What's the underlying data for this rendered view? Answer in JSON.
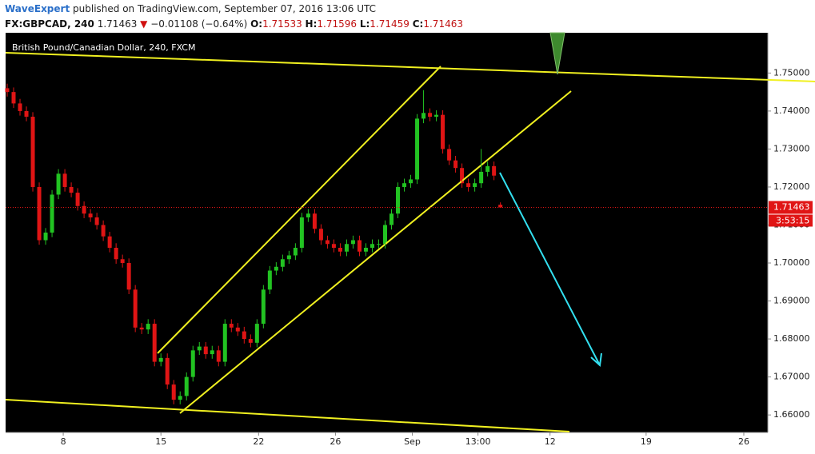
{
  "header": {
    "author": "WaveExpert",
    "published": "published on TradingView.com, September 07, 2016 13:06 UTC",
    "symbol": "FX:GBPCAD, 240",
    "change": "−0.01108 (−0.64%)",
    "labels": {
      "open": "O:",
      "high": "H:",
      "low": "L:",
      "close": "C:"
    }
  },
  "chart_data": {
    "type": "candlestick",
    "title": "British Pound/Canadian Dollar, 240, FXCM",
    "x": [
      0,
      2,
      4,
      6,
      8,
      10,
      12,
      14,
      16,
      18,
      20,
      22,
      24,
      26,
      28,
      30,
      32,
      34,
      36,
      38,
      40,
      42,
      44,
      46,
      48,
      50,
      52,
      54,
      56,
      58,
      60,
      62,
      64,
      66,
      68,
      70,
      72,
      74,
      76,
      78,
      80,
      82,
      84,
      86,
      88,
      90,
      92,
      94,
      96,
      98,
      100,
      102,
      104,
      106,
      108,
      110,
      112,
      114,
      116,
      118,
      120,
      122,
      124,
      126,
      128,
      130,
      132,
      134,
      136,
      138,
      140,
      142,
      144,
      146,
      148,
      150,
      152,
      154
    ],
    "open": [
      1.746,
      1.745,
      1.742,
      1.74,
      1.7385,
      1.72,
      1.706,
      1.708,
      1.718,
      1.7235,
      1.72,
      1.7185,
      1.715,
      1.713,
      1.712,
      1.71,
      1.707,
      1.704,
      1.701,
      1.7,
      1.693,
      1.683,
      1.6825,
      1.684,
      1.674,
      1.675,
      1.668,
      1.664,
      1.665,
      1.67,
      1.677,
      1.678,
      1.676,
      1.677,
      1.674,
      1.684,
      1.683,
      1.682,
      1.68,
      1.679,
      1.684,
      1.693,
      1.698,
      1.699,
      1.701,
      1.702,
      1.704,
      1.712,
      1.713,
      1.709,
      1.706,
      1.705,
      1.704,
      1.703,
      1.705,
      1.706,
      1.703,
      1.704,
      1.705,
      1.705,
      1.71,
      1.713,
      1.72,
      1.721,
      1.722,
      1.738,
      1.7395,
      1.7385,
      1.739,
      1.73,
      1.727,
      1.725,
      1.721,
      1.72,
      1.721,
      1.724,
      1.7255,
      1.71533
    ],
    "high": [
      1.7472,
      1.7462,
      1.7432,
      1.7412,
      1.7397,
      1.7212,
      1.7092,
      1.7192,
      1.7247,
      1.7247,
      1.7212,
      1.7197,
      1.7162,
      1.7142,
      1.7132,
      1.7112,
      1.7082,
      1.7052,
      1.7022,
      1.7012,
      1.6942,
      1.6842,
      1.6852,
      1.6852,
      1.6762,
      1.6762,
      1.6692,
      1.6662,
      1.6712,
      1.6782,
      1.6792,
      1.6792,
      1.6782,
      1.6782,
      1.6852,
      1.6852,
      1.6842,
      1.6832,
      1.6812,
      1.6852,
      1.6942,
      1.6992,
      1.7002,
      1.7022,
      1.7032,
      1.7052,
      1.7132,
      1.7142,
      1.7142,
      1.7102,
      1.7072,
      1.7062,
      1.7052,
      1.7062,
      1.7072,
      1.7072,
      1.7052,
      1.7062,
      1.7062,
      1.7112,
      1.7142,
      1.7212,
      1.7222,
      1.7232,
      1.7392,
      1.7455,
      1.7407,
      1.7402,
      1.7402,
      1.7312,
      1.7282,
      1.7262,
      1.7222,
      1.7222,
      1.73,
      1.7267,
      1.7267,
      1.71596
    ],
    "low": [
      1.7438,
      1.7408,
      1.7388,
      1.7373,
      1.7188,
      1.7048,
      1.7048,
      1.7068,
      1.7168,
      1.7188,
      1.7173,
      1.7138,
      1.7118,
      1.7108,
      1.7088,
      1.7058,
      1.7028,
      1.6998,
      1.6988,
      1.6918,
      1.6818,
      1.6813,
      1.6813,
      1.6728,
      1.6728,
      1.6668,
      1.6628,
      1.6628,
      1.6638,
      1.6688,
      1.6758,
      1.6748,
      1.6748,
      1.6728,
      1.6728,
      1.6818,
      1.6808,
      1.6788,
      1.6778,
      1.6778,
      1.6828,
      1.6918,
      1.6968,
      1.6978,
      1.6998,
      1.7008,
      1.7028,
      1.7108,
      1.7078,
      1.7048,
      1.7038,
      1.7028,
      1.7018,
      1.7018,
      1.7038,
      1.7018,
      1.7018,
      1.7028,
      1.7038,
      1.7038,
      1.7088,
      1.7118,
      1.7188,
      1.7198,
      1.7208,
      1.7368,
      1.7373,
      1.7373,
      1.7288,
      1.7258,
      1.7238,
      1.7198,
      1.7188,
      1.7188,
      1.7198,
      1.7228,
      1.7218,
      1.71459
    ],
    "close": [
      1.745,
      1.742,
      1.74,
      1.7385,
      1.72,
      1.706,
      1.708,
      1.718,
      1.7235,
      1.72,
      1.7185,
      1.715,
      1.713,
      1.712,
      1.71,
      1.707,
      1.704,
      1.701,
      1.7,
      1.693,
      1.683,
      1.6825,
      1.684,
      1.674,
      1.675,
      1.668,
      1.664,
      1.665,
      1.67,
      1.677,
      1.678,
      1.676,
      1.677,
      1.674,
      1.684,
      1.683,
      1.682,
      1.68,
      1.679,
      1.684,
      1.693,
      1.698,
      1.699,
      1.701,
      1.702,
      1.704,
      1.712,
      1.713,
      1.709,
      1.706,
      1.705,
      1.704,
      1.703,
      1.705,
      1.706,
      1.703,
      1.704,
      1.705,
      1.705,
      1.71,
      1.713,
      1.72,
      1.721,
      1.722,
      1.738,
      1.7395,
      1.7385,
      1.739,
      1.73,
      1.727,
      1.725,
      1.721,
      1.72,
      1.721,
      1.724,
      1.7255,
      1.723,
      1.71463
    ],
    "up_color": "#22c322",
    "down_color": "#e01515",
    "xlim": [
      0,
      238
    ],
    "xticks": [
      {
        "value": 18,
        "label": "8"
      },
      {
        "value": 48.5,
        "label": "15"
      },
      {
        "value": 79,
        "label": "22"
      },
      {
        "value": 103,
        "label": "26"
      },
      {
        "value": 127,
        "label": "Sep"
      },
      {
        "value": 147.5,
        "label": "13:00"
      },
      {
        "value": 170,
        "label": "12"
      },
      {
        "value": 200,
        "label": "19"
      },
      {
        "value": 230.5,
        "label": "26"
      }
    ],
    "ylim": [
      1.6554,
      1.7606
    ],
    "yticks": [
      {
        "value": 1.66,
        "label": "1.66000"
      },
      {
        "value": 1.67,
        "label": "1.67000"
      },
      {
        "value": 1.68,
        "label": "1.68000"
      },
      {
        "value": 1.69,
        "label": "1.69000"
      },
      {
        "value": 1.7,
        "label": "1.70000"
      },
      {
        "value": 1.71,
        "label": "1.71000"
      },
      {
        "value": 1.72,
        "label": "1.72000"
      },
      {
        "value": 1.73,
        "label": "1.73000"
      },
      {
        "value": 1.74,
        "label": "1.74000"
      },
      {
        "value": 1.75,
        "label": "1.75000"
      }
    ],
    "countdown": "3:53:15",
    "last_price_line": true
  }
}
